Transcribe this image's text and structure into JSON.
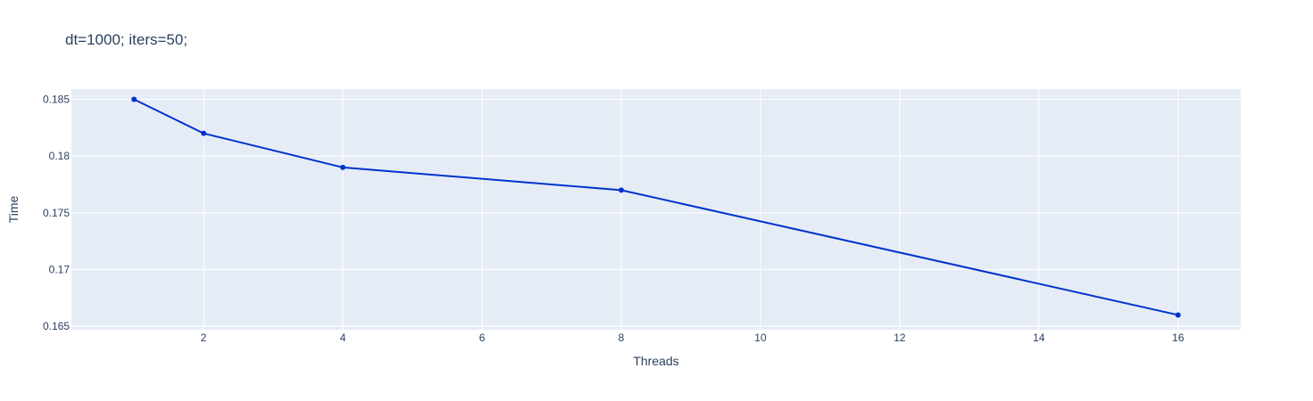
{
  "chart_data": {
    "type": "line",
    "title": "dt=1000; iters=50;",
    "xlabel": "Threads",
    "ylabel": "Time",
    "x": [
      1,
      2,
      4,
      8,
      16
    ],
    "series": [
      {
        "values": [
          0.185,
          0.182,
          0.179,
          0.177,
          0.166
        ],
        "color": "#0033cc"
      }
    ],
    "xlim": [
      0.1,
      16.9
    ],
    "ylim": [
      0.1647,
      0.1859
    ],
    "xticks": [
      2,
      4,
      6,
      8,
      10,
      12,
      14,
      16
    ],
    "xtick_labels": [
      "2",
      "4",
      "6",
      "8",
      "10",
      "12",
      "14",
      "16"
    ],
    "yticks": [
      0.165,
      0.17,
      0.175,
      0.18,
      0.185
    ],
    "ytick_labels": [
      "0.165",
      "0.17",
      "0.175",
      "0.18",
      "0.185"
    ],
    "grid": true,
    "legend": false,
    "colors": {
      "plot_background": "#e5ecf6",
      "grid": "#ffffff",
      "text": "#2a3f5f"
    }
  }
}
